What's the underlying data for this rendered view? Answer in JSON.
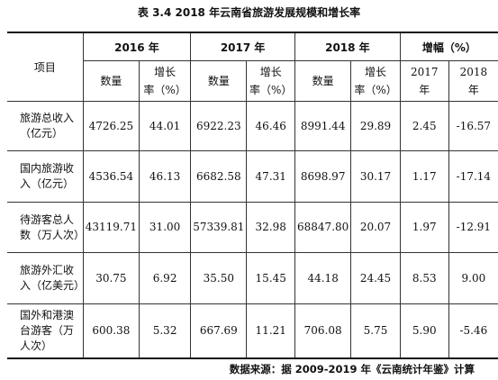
{
  "title": "表 3.4 2018 年云南省旅游发展规模和增长率",
  "table": {
    "header": {
      "item": "项目",
      "groups": [
        "2016 年",
        "2017 年",
        "2018 年",
        "增幅（%）"
      ],
      "subheaders": [
        [
          "数量"
        ],
        [
          "增长",
          "率（%）"
        ],
        [
          "数量"
        ],
        [
          "增长",
          "率（%）"
        ],
        [
          "数量"
        ],
        [
          "增长",
          "率（%）"
        ],
        [
          "2017",
          "年"
        ],
        [
          "2018",
          "年"
        ]
      ]
    },
    "rows": [
      {
        "item": [
          "旅游总收入",
          "（亿元）"
        ],
        "cells": [
          "4726.25",
          "44.01",
          "6922.23",
          "46.46",
          "8991.44",
          "29.89",
          "2.45",
          "-16.57"
        ]
      },
      {
        "item": [
          "国内旅游收",
          "入（亿元）"
        ],
        "cells": [
          "4536.54",
          "46.13",
          "6682.58",
          "47.31",
          "8698.97",
          "30.17",
          "1.17",
          "-17.14"
        ]
      },
      {
        "item": [
          "待游客总人",
          "数（万人次）"
        ],
        "cells": [
          "43119.71",
          "31.00",
          "57339.81",
          "32.98",
          "68847.80",
          "20.07",
          "1.97",
          "-12.91"
        ]
      },
      {
        "item": [
          "旅游外汇收",
          "入（亿美元）"
        ],
        "cells": [
          "30.75",
          "6.92",
          "35.50",
          "15.45",
          "44.18",
          "24.45",
          "8.53",
          "9.00"
        ]
      },
      {
        "item": [
          "国外和港澳",
          "台游客（万",
          "人次）"
        ],
        "cells": [
          "600.38",
          "5.32",
          "667.69",
          "11.21",
          "706.08",
          "5.75",
          "5.90",
          "-5.46"
        ]
      }
    ]
  },
  "source": "数据来源：据 2009-2019 年《云南统计年鉴》计算"
}
